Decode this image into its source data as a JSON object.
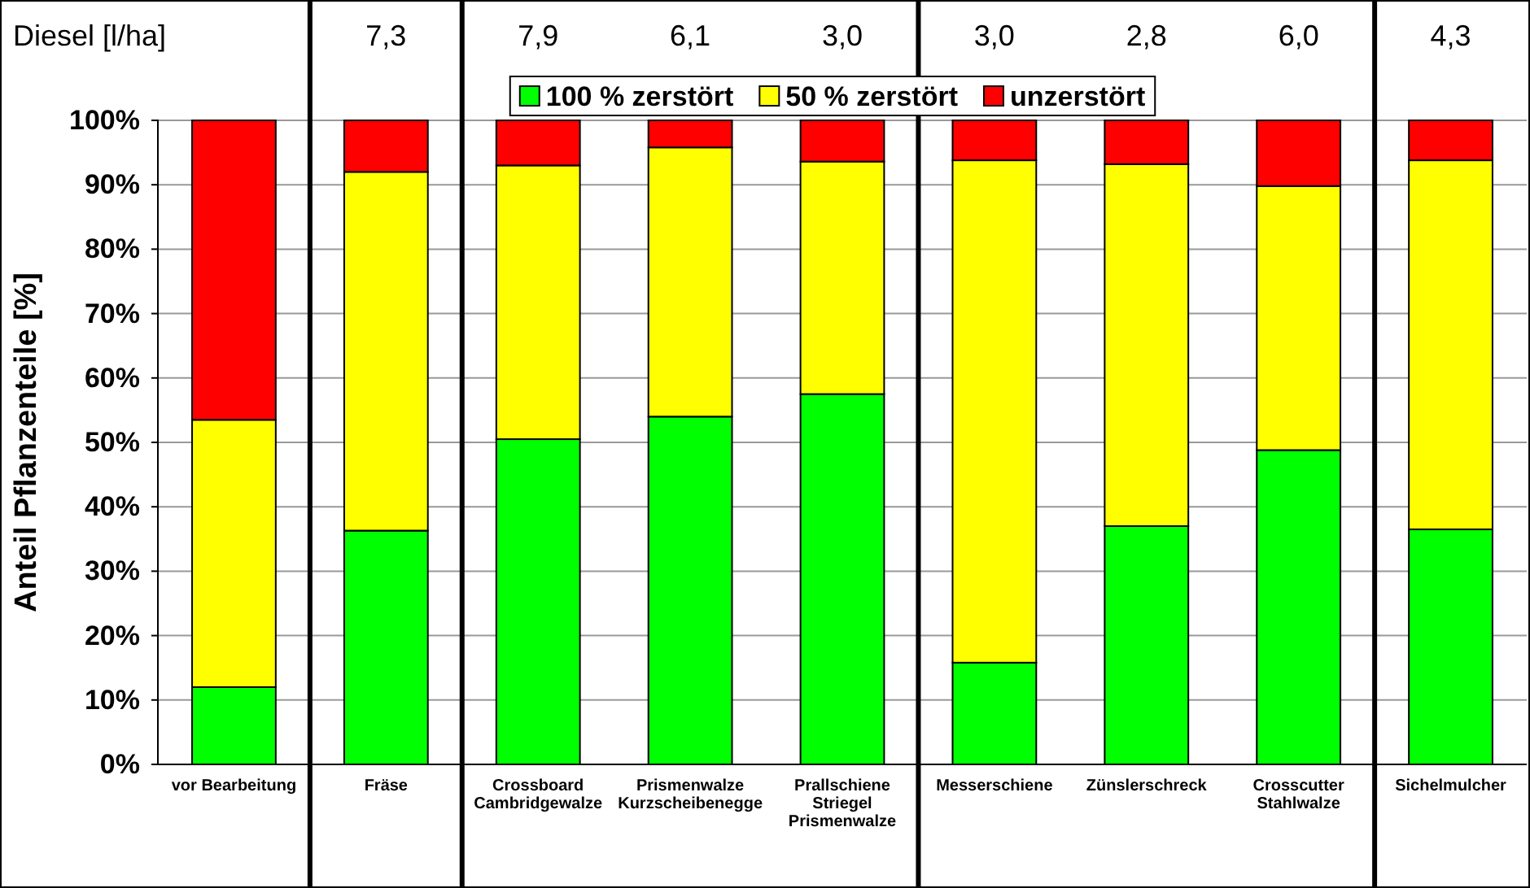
{
  "chart_data": {
    "type": "bar",
    "stacked": true,
    "ylabel": "Anteil Pflanzenteile [%]",
    "categories": [
      "vor Bearbeitung",
      "Fräse",
      "Crossboard\nCambridgewalze",
      "Prismenwalze\nKurzscheibenegge",
      "Prallschiene\nStriegel\nPrismenwalze",
      "Messerschiene",
      "Zünslerschreck",
      "Crosscutter\nStahlwalze",
      "Sichelmulcher"
    ],
    "series": [
      {
        "name": "100 % zerstört",
        "color": "#00ff00",
        "values": [
          12,
          36.3,
          50.5,
          54,
          57.5,
          15.8,
          37,
          48.8,
          36.5
        ]
      },
      {
        "name": "50 % zerstört",
        "color": "#ffff00",
        "values": [
          41.5,
          55.7,
          42.5,
          41.8,
          36.1,
          78,
          56.2,
          41,
          57.3
        ]
      },
      {
        "name": "unzerstört",
        "color": "#ff0000",
        "values": [
          46.5,
          8,
          7,
          4.2,
          6.4,
          6.2,
          6.8,
          10.2,
          6.2
        ]
      }
    ],
    "ylim": [
      0,
      100
    ],
    "yticks": [
      {
        "value": 0,
        "label": "0%"
      },
      {
        "value": 10,
        "label": "10%"
      },
      {
        "value": 20,
        "label": "20%"
      },
      {
        "value": 30,
        "label": "30%"
      },
      {
        "value": 40,
        "label": "40%"
      },
      {
        "value": 50,
        "label": "50%"
      },
      {
        "value": 60,
        "label": "60%"
      },
      {
        "value": 70,
        "label": "70%"
      },
      {
        "value": 80,
        "label": "80%"
      },
      {
        "value": 90,
        "label": "90%"
      },
      {
        "value": 100,
        "label": "100%"
      }
    ],
    "grid": "y",
    "legend": "top",
    "annotations": [
      "Diesel [l/ha]",
      "7,3",
      "7,9",
      "6,1",
      "3,0",
      "3,0",
      "2,8",
      "6,0",
      "4,3"
    ]
  }
}
